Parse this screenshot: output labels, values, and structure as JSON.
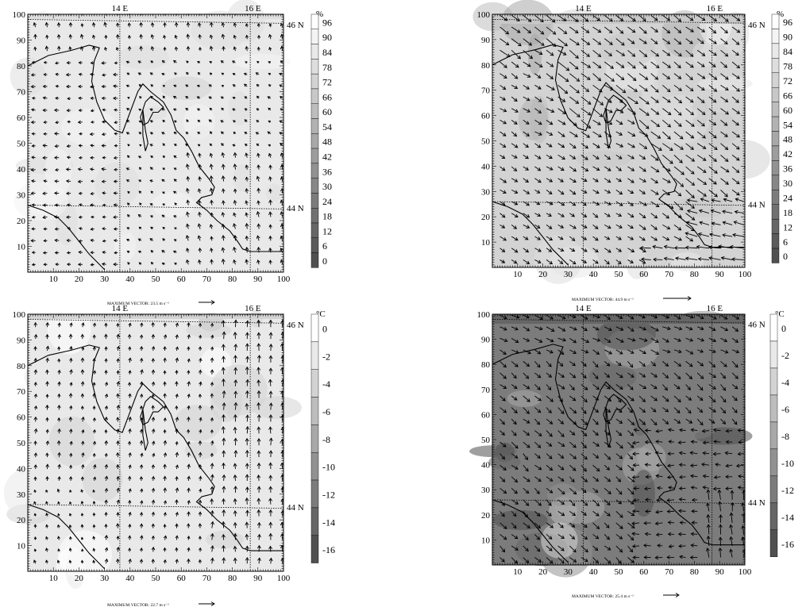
{
  "chart_data": [
    {
      "type": "vector-field",
      "variable": "relative humidity",
      "cbar_unit": "%",
      "cbar_levels": [
        0,
        6,
        12,
        18,
        24,
        30,
        36,
        42,
        48,
        54,
        60,
        66,
        72,
        78,
        84,
        90,
        96
      ],
      "x_ticks": [
        10,
        20,
        30,
        40,
        50,
        60,
        70,
        80,
        90,
        100
      ],
      "y_ticks": [
        10,
        20,
        30,
        40,
        50,
        60,
        70,
        80,
        90,
        100
      ],
      "xlim": [
        0,
        100
      ],
      "ylim": [
        0,
        100
      ],
      "lon_labels": [
        "14 E",
        "16 E"
      ],
      "lat_labels": [
        "46 N",
        "44 N"
      ],
      "max_vector_label": "MAXIMUM VECTOR: 23.5 m s⁻¹",
      "max_vector_ms": 23.5,
      "background_level": 84,
      "wind_style": "onshore"
    },
    {
      "type": "vector-field",
      "variable": "relative humidity",
      "cbar_unit": "%",
      "cbar_levels": [
        0,
        6,
        12,
        18,
        24,
        30,
        36,
        42,
        48,
        54,
        60,
        66,
        72,
        78,
        84,
        90,
        96
      ],
      "x_ticks": [
        10,
        20,
        30,
        40,
        50,
        60,
        70,
        80,
        90,
        100
      ],
      "y_ticks": [
        10,
        20,
        30,
        40,
        50,
        60,
        70,
        80,
        90,
        100
      ],
      "xlim": [
        0,
        100
      ],
      "ylim": [
        0,
        100
      ],
      "lon_labels": [
        "14 E",
        "16 E"
      ],
      "lat_labels": [
        "46 N",
        "44 N"
      ],
      "max_vector_label": "MAXIMUM VECTOR: 44.9 m s⁻¹",
      "max_vector_ms": 44.9,
      "background_level": 72,
      "wind_style": "bora"
    },
    {
      "type": "vector-field",
      "variable": "temperature",
      "cbar_unit": "°C",
      "cbar_levels": [
        -16,
        -14,
        -12,
        -10,
        -8,
        -6,
        -4,
        -2,
        0
      ],
      "x_ticks": [
        10,
        20,
        30,
        40,
        50,
        60,
        70,
        80,
        90,
        100
      ],
      "y_ticks": [
        10,
        20,
        30,
        40,
        50,
        60,
        70,
        80,
        90,
        100
      ],
      "xlim": [
        0,
        100
      ],
      "ylim": [
        0,
        100
      ],
      "lon_labels": [
        "14 E",
        "16 E"
      ],
      "lat_labels": [
        "46 N",
        "44 N"
      ],
      "max_vector_label": "MAXIMUM VECTOR: 22.7 m s⁻¹",
      "max_vector_ms": 22.7,
      "background_level": -2,
      "wind_style": "northerly"
    },
    {
      "type": "vector-field",
      "variable": "temperature",
      "cbar_unit": "°C",
      "cbar_levels": [
        -16,
        -14,
        -12,
        -10,
        -8,
        -6,
        -4,
        -2,
        0
      ],
      "x_ticks": [
        10,
        20,
        30,
        40,
        50,
        60,
        70,
        80,
        90,
        100
      ],
      "y_ticks": [
        10,
        20,
        30,
        40,
        50,
        60,
        70,
        80,
        90,
        100
      ],
      "xlim": [
        0,
        100
      ],
      "ylim": [
        0,
        100
      ],
      "lon_labels": [
        "14 E",
        "16 E"
      ],
      "lat_labels": [
        "46 N",
        "44 N"
      ],
      "max_vector_label": "MAXIMUM VECTOR: 25.4 m s⁻¹",
      "max_vector_ms": 25.4,
      "background_level": -12,
      "wind_style": "mixed"
    }
  ]
}
